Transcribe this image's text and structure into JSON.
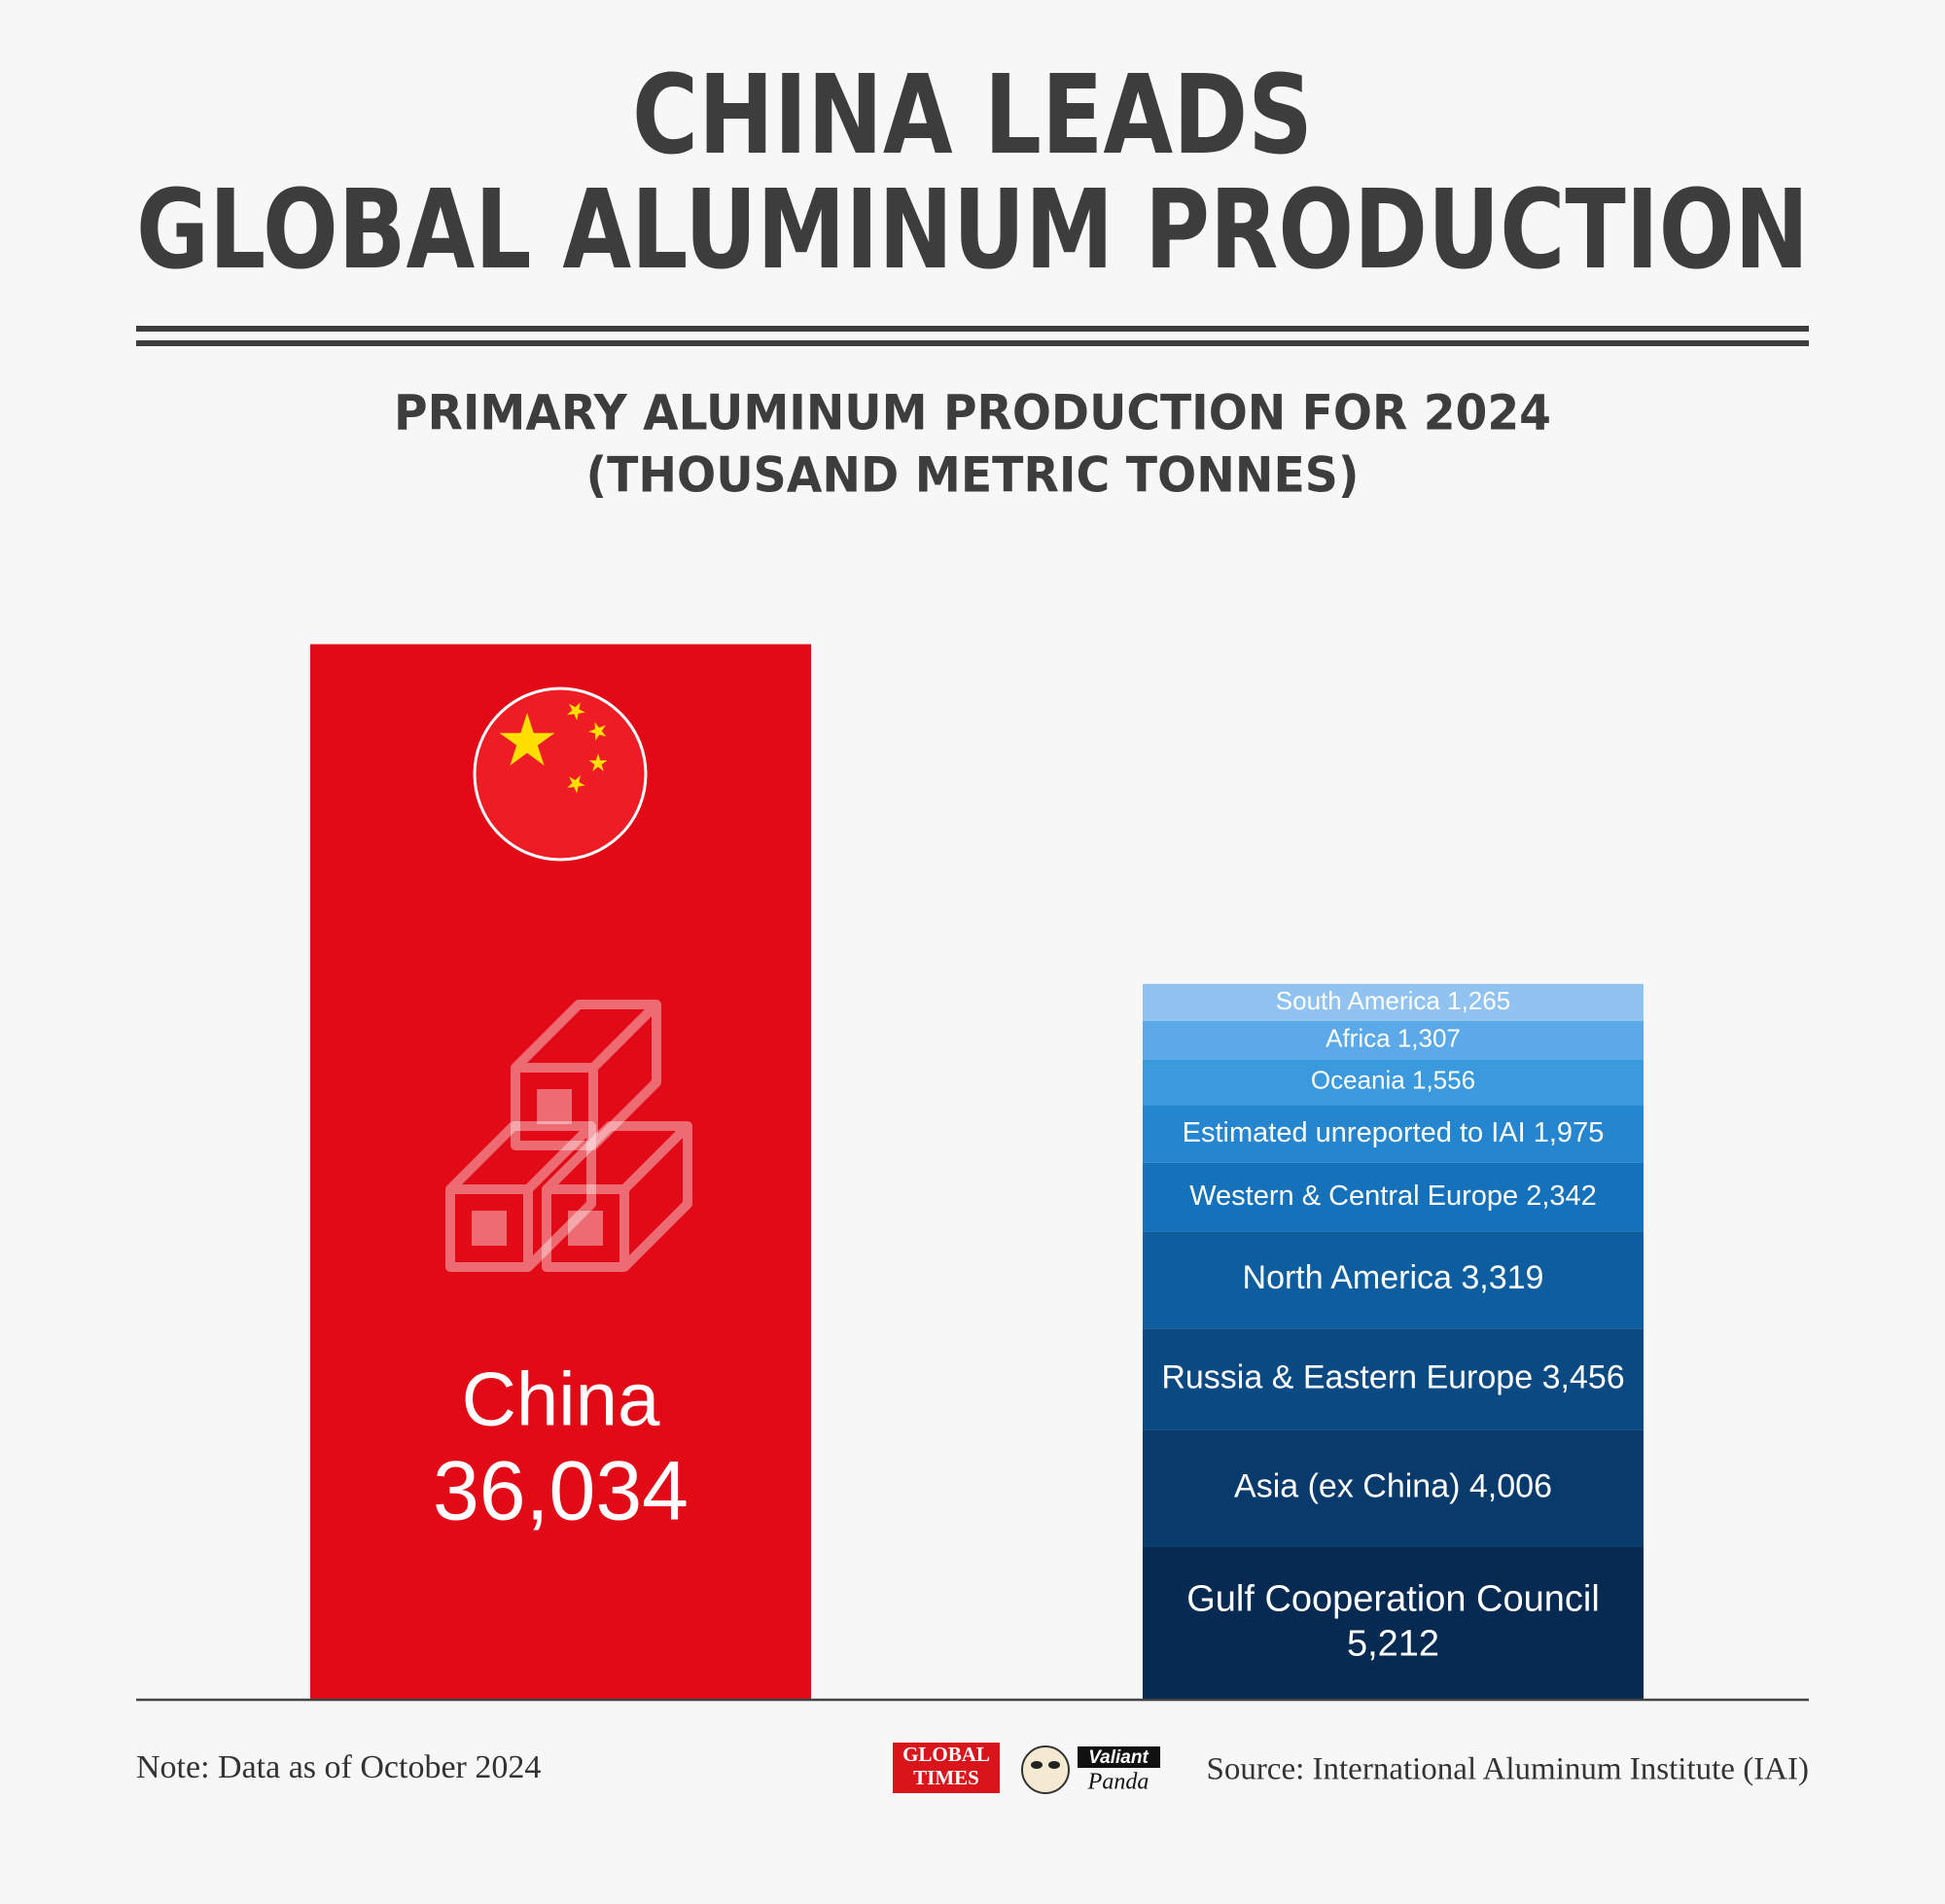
{
  "title_lines": [
    "CHINA LEADS",
    "GLOBAL ALUMINUM PRODUCTION"
  ],
  "chart_data": {
    "type": "stacked_bar",
    "subtitle_lines": [
      "PRIMARY ALUMINUM PRODUCTION FOR 2024",
      "(THOUSAND METRIC TONNES)"
    ],
    "categories": [
      "China",
      null
    ],
    "ylim": [
      0,
      40000
    ],
    "series": [
      {
        "color": "#e10a16",
        "values": [
          36034,
          null
        ],
        "value_labels": [
          "36,034",
          null
        ]
      },
      {
        "name": "Gulf Cooperation Council",
        "color": "#062a52",
        "values": [
          null,
          5212
        ],
        "value_labels": [
          null,
          "5,212"
        ]
      },
      {
        "name": "Asia (ex China)",
        "color": "#093a6c",
        "values": [
          null,
          4006
        ],
        "value_labels": [
          null,
          "4,006"
        ]
      },
      {
        "name": "Russia & Eastern Europe",
        "color": "#0b4982",
        "values": [
          null,
          3456
        ],
        "value_labels": [
          null,
          "3,456"
        ]
      },
      {
        "name": "North America",
        "color": "#0e5d9e",
        "values": [
          null,
          3319
        ],
        "value_labels": [
          null,
          "3,319"
        ]
      },
      {
        "name": "Western & Central Europe",
        "color": "#1571ba",
        "values": [
          null,
          2342
        ],
        "value_labels": [
          null,
          "2,342"
        ]
      },
      {
        "name": "Estimated unreported to IAI",
        "color": "#2586cf",
        "values": [
          null,
          1975
        ],
        "value_labels": [
          null,
          "1,975"
        ]
      },
      {
        "name": "Oceania",
        "color": "#3b99dd",
        "values": [
          null,
          1556
        ],
        "value_labels": [
          null,
          "1,556"
        ]
      },
      {
        "name": "Africa",
        "color": "#5ba9e9",
        "values": [
          null,
          1307
        ],
        "value_labels": [
          null,
          "1,307"
        ]
      },
      {
        "name": "South America",
        "color": "#90c3ef",
        "values": [
          null,
          1265
        ],
        "value_labels": [
          null,
          "1,265"
        ]
      }
    ]
  },
  "footer": {
    "note": "Note: Data as of October 2024",
    "source": "Source: International Aluminum Institute (IAI)",
    "logos": [
      "GLOBAL",
      "TIMES",
      "Valiant",
      "Panda"
    ]
  }
}
